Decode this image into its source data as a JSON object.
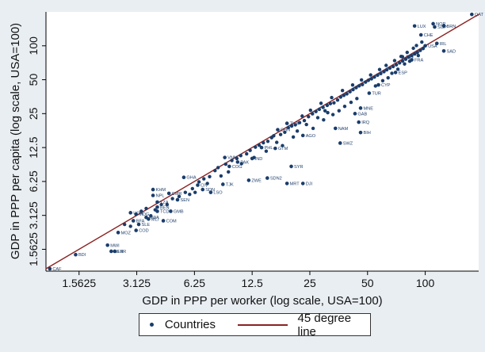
{
  "chart_data": {
    "type": "scatter",
    "xlabel": "GDP in PPP per worker (log scale, USA=100)",
    "ylabel": "GDP in PPP per capita (log scale, USA=100)",
    "x_log_base": 2,
    "y_log_base": 2,
    "xlim": [
      1.05,
      190
    ],
    "ylim": [
      1.0,
      200
    ],
    "x_ticks": [
      "1.5625",
      "3.125",
      "6.25",
      "12.5",
      "25",
      "50",
      "100"
    ],
    "y_ticks": [
      "1.5625",
      "3.125",
      "6.25",
      "12.5",
      "25",
      "50",
      "100"
    ],
    "grid": false,
    "legend_position": "bottom",
    "series": [
      {
        "name": "Countries",
        "color": "#1a3d6b",
        "points": [
          {
            "label": "CAF",
            "x": 1.1,
            "y": 1.05
          },
          {
            "label": "BDI",
            "x": 1.5,
            "y": 1.4
          },
          {
            "label": "MWI",
            "x": 2.2,
            "y": 1.7
          },
          {
            "label": "NER",
            "x": 2.3,
            "y": 1.5
          },
          {
            "label": "LBR",
            "x": 2.4,
            "y": 1.5
          },
          {
            "label": "MOZ",
            "x": 2.5,
            "y": 2.2
          },
          {
            "label": "COD",
            "x": 3.1,
            "y": 2.3
          },
          {
            "label": "SLE",
            "x": 3.2,
            "y": 2.6
          },
          {
            "label": "BFA",
            "x": 3.0,
            "y": 2.8
          },
          {
            "label": "MLI",
            "x": 3.6,
            "y": 2.9
          },
          {
            "label": "COM",
            "x": 4.3,
            "y": 2.8
          },
          {
            "label": "RWA",
            "x": 3.5,
            "y": 3.0
          },
          {
            "label": "UGA",
            "x": 2.9,
            "y": 3.3
          },
          {
            "label": "MDG",
            "x": 3.1,
            "y": 3.2
          },
          {
            "label": "TCD",
            "x": 4.0,
            "y": 3.4
          },
          {
            "label": "GMB",
            "x": 4.7,
            "y": 3.4
          },
          {
            "label": "BEN",
            "x": 4.0,
            "y": 3.7
          },
          {
            "label": "TZA",
            "x": 4.0,
            "y": 4.1
          },
          {
            "label": "SEN",
            "x": 5.1,
            "y": 4.3
          },
          {
            "label": "NPL",
            "x": 3.8,
            "y": 4.7
          },
          {
            "label": "CMR",
            "x": 4.6,
            "y": 4.9
          },
          {
            "label": "KHM",
            "x": 3.8,
            "y": 5.3
          },
          {
            "label": "GHA",
            "x": 5.5,
            "y": 6.8
          },
          {
            "label": "CIV",
            "x": 6.5,
            "y": 5.8
          },
          {
            "label": "SDN",
            "x": 6.9,
            "y": 5.3
          },
          {
            "label": "LSO",
            "x": 7.6,
            "y": 5.0
          },
          {
            "label": "TJK",
            "x": 8.8,
            "y": 5.9
          },
          {
            "label": "SDN2",
            "x": 15.0,
            "y": 6.7
          },
          {
            "label": "ZWE",
            "x": 12.0,
            "y": 6.4
          },
          {
            "label": "MRT",
            "x": 19.0,
            "y": 6.0
          },
          {
            "label": "DJI",
            "x": 23.0,
            "y": 6.0
          },
          {
            "label": "COG",
            "x": 9.5,
            "y": 8.5
          },
          {
            "label": "PAK",
            "x": 10.5,
            "y": 9.3
          },
          {
            "label": "IND",
            "x": 12.5,
            "y": 10.0
          },
          {
            "label": "VNM",
            "x": 9.0,
            "y": 10.2
          },
          {
            "label": "SYR",
            "x": 20.0,
            "y": 8.5
          },
          {
            "label": "PHL",
            "x": 14.0,
            "y": 12.5
          },
          {
            "label": "GTM",
            "x": 16.5,
            "y": 12.3
          },
          {
            "label": "SWZ",
            "x": 36.0,
            "y": 13.7
          },
          {
            "label": "AGO",
            "x": 23.0,
            "y": 16.0
          },
          {
            "label": "CHN",
            "x": 17.0,
            "y": 18.0
          },
          {
            "label": "THA",
            "x": 19.0,
            "y": 20.5
          },
          {
            "label": "NAM",
            "x": 34.0,
            "y": 18.5
          },
          {
            "label": "BIH",
            "x": 46.0,
            "y": 17.0
          },
          {
            "label": "IRQ",
            "x": 45.0,
            "y": 21.0
          },
          {
            "label": "GAB",
            "x": 43.0,
            "y": 25.0
          },
          {
            "label": "MNE",
            "x": 46.0,
            "y": 28.0
          },
          {
            "label": "TUR",
            "x": 51.0,
            "y": 38.0
          },
          {
            "label": "CYP",
            "x": 57.0,
            "y": 45.0
          },
          {
            "label": "ESP",
            "x": 70.0,
            "y": 58.0
          },
          {
            "label": "FRA",
            "x": 85.0,
            "y": 75.0
          },
          {
            "label": "JPN",
            "x": 76.0,
            "y": 80.0
          },
          {
            "label": "SAD",
            "x": 125.0,
            "y": 90.0
          },
          {
            "label": "USA",
            "x": 100.0,
            "y": 100.0
          },
          {
            "label": "IRL",
            "x": 115.0,
            "y": 105.0
          },
          {
            "label": "CHE",
            "x": 95.0,
            "y": 125.0
          },
          {
            "label": "LUX",
            "x": 88.0,
            "y": 150.0
          },
          {
            "label": "NOR",
            "x": 110.0,
            "y": 157.0
          },
          {
            "label": "SGP",
            "x": 112.0,
            "y": 147.0
          },
          {
            "label": "BRN",
            "x": 125.0,
            "y": 150.0
          },
          {
            "label": "QAT",
            "x": 175.0,
            "y": 190.0
          }
        ]
      },
      {
        "name": "45 degree line",
        "color": "#8b2222",
        "x": [
          1.05,
          190
        ],
        "y": [
          1.05,
          190
        ]
      }
    ],
    "extra_points": [
      [
        3.5,
        3.6
      ],
      [
        3.9,
        3.5
      ],
      [
        4.2,
        3.9
      ],
      [
        4.8,
        4.4
      ],
      [
        5.2,
        4.6
      ],
      [
        5.6,
        5.0
      ],
      [
        6.1,
        5.4
      ],
      [
        6.6,
        6.2
      ],
      [
        7.0,
        6.6
      ],
      [
        7.5,
        6.9
      ],
      [
        8.0,
        7.8
      ],
      [
        8.3,
        8.3
      ],
      [
        9.1,
        8.9
      ],
      [
        9.8,
        9.6
      ],
      [
        10.4,
        10.0
      ],
      [
        10.9,
        10.6
      ],
      [
        11.7,
        11.0
      ],
      [
        12.2,
        11.8
      ],
      [
        13.0,
        12.6
      ],
      [
        13.6,
        13.1
      ],
      [
        14.3,
        13.8
      ],
      [
        15.1,
        14.2
      ],
      [
        15.8,
        15.3
      ],
      [
        16.2,
        15.9
      ],
      [
        17.6,
        16.3
      ],
      [
        18.5,
        17.1
      ],
      [
        19.3,
        18.8
      ],
      [
        20.1,
        19.4
      ],
      [
        21.0,
        19.9
      ],
      [
        22.1,
        20.8
      ],
      [
        23.4,
        21.7
      ],
      [
        24.6,
        23.5
      ],
      [
        25.8,
        24.9
      ],
      [
        26.9,
        26.1
      ],
      [
        28.0,
        27.3
      ],
      [
        29.3,
        28.4
      ],
      [
        30.8,
        29.6
      ],
      [
        32.0,
        30.7
      ],
      [
        33.4,
        31.2
      ],
      [
        34.9,
        33.0
      ],
      [
        36.2,
        35.1
      ],
      [
        37.6,
        36.3
      ],
      [
        39.0,
        37.4
      ],
      [
        40.5,
        39.1
      ],
      [
        42.0,
        40.8
      ],
      [
        43.6,
        42.5
      ],
      [
        45.2,
        44.1
      ],
      [
        47.0,
        45.3
      ],
      [
        48.8,
        47.6
      ],
      [
        50.5,
        49.4
      ],
      [
        52.4,
        50.9
      ],
      [
        54.3,
        52.8
      ],
      [
        56.4,
        54.9
      ],
      [
        58.6,
        56.7
      ],
      [
        60.9,
        58.9
      ],
      [
        63.0,
        61.2
      ],
      [
        65.4,
        63.4
      ],
      [
        68.0,
        65.5
      ],
      [
        70.7,
        67.9
      ],
      [
        73.5,
        70.6
      ],
      [
        76.2,
        73.3
      ],
      [
        79.1,
        76.1
      ],
      [
        82.0,
        79.2
      ],
      [
        85.0,
        82.0
      ],
      [
        88.1,
        84.6
      ],
      [
        91.0,
        87.5
      ],
      [
        94.2,
        91.0
      ],
      [
        97.5,
        94.7
      ],
      [
        18.0,
        13.0
      ],
      [
        20.5,
        15.5
      ],
      [
        26.0,
        18.5
      ],
      [
        29.5,
        22.0
      ],
      [
        31.0,
        25.5
      ],
      [
        33.0,
        24.5
      ],
      [
        35.5,
        26.5
      ],
      [
        38.0,
        29.0
      ],
      [
        41.0,
        31.5
      ],
      [
        44.0,
        34.0
      ],
      [
        55.0,
        44.0
      ],
      [
        60.0,
        49.0
      ],
      [
        64.0,
        52.0
      ],
      [
        67.0,
        57.0
      ],
      [
        72.0,
        62.0
      ],
      [
        78.0,
        69.0
      ],
      [
        83.0,
        73.0
      ],
      [
        92.0,
        82.0
      ],
      [
        21.5,
        17.5
      ],
      [
        24.0,
        20.0
      ],
      [
        27.5,
        23.0
      ],
      [
        30.0,
        26.5
      ],
      [
        12.8,
        10.2
      ],
      [
        14.8,
        11.6
      ],
      [
        16.8,
        13.9
      ],
      [
        11.0,
        9.0
      ],
      [
        9.4,
        7.6
      ],
      [
        8.6,
        7.0
      ],
      [
        7.3,
        6.0
      ],
      [
        6.3,
        5.0
      ],
      [
        5.9,
        4.8
      ],
      [
        4.5,
        3.9
      ],
      [
        3.3,
        3.4
      ],
      [
        2.7,
        2.6
      ],
      [
        2.9,
        2.5
      ],
      [
        3.7,
        3.1
      ],
      [
        22.8,
        23.8
      ],
      [
        25.2,
        26.8
      ],
      [
        28.6,
        30.9
      ],
      [
        32.5,
        34.7
      ],
      [
        37.0,
        40.1
      ],
      [
        41.8,
        44.9
      ],
      [
        46.5,
        49.8
      ],
      [
        51.9,
        55.1
      ],
      [
        57.8,
        61.6
      ],
      [
        62.5,
        67.0
      ],
      [
        69.2,
        73.9
      ],
      [
        74.8,
        80.4
      ],
      [
        80.5,
        87.5
      ],
      [
        86.7,
        95.1
      ],
      [
        90.0,
        100.5
      ],
      [
        96.0,
        108.0
      ]
    ]
  },
  "legend": {
    "items": [
      {
        "label": "Countries"
      },
      {
        "label": "45 degree line"
      }
    ]
  }
}
